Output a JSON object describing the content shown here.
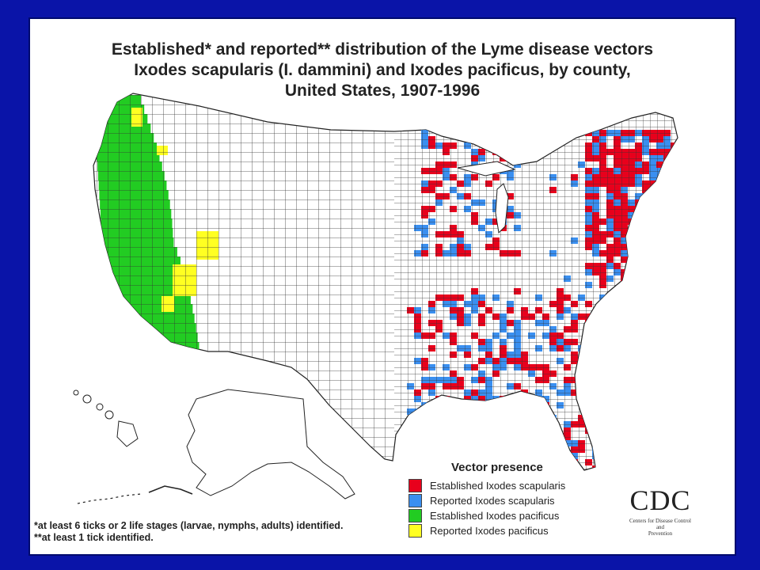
{
  "title": {
    "line1": "Established* and reported** distribution of the Lyme disease vectors",
    "line2": "Ixodes scapularis (I. dammini) and Ixodes pacificus, by county,",
    "line3": "United States, 1907-1996"
  },
  "legend": {
    "title": "Vector presence",
    "items": [
      {
        "label": "Established Ixodes scapularis",
        "color": "#e8001c"
      },
      {
        "label": "Reported Ixodes scapularis",
        "color": "#3a8ff0"
      },
      {
        "label": "Established Ixodes pacificus",
        "color": "#22cc22"
      },
      {
        "label": "Reported Ixodes pacificus",
        "color": "#ffff22"
      }
    ]
  },
  "footnotes": {
    "line1": "*at least 6 ticks or 2 life stages (larvae, nymphs, adults) identified.",
    "line2": "**at least 1 tick identified."
  },
  "logo": {
    "name": "CDC",
    "line1": "Centers for Disease Control",
    "line2": "and",
    "line3": "Prevention"
  },
  "colors": {
    "background": "#0a14a8",
    "panel": "#ffffff",
    "county_fill": "#ffffff",
    "county_border": "#333333"
  }
}
